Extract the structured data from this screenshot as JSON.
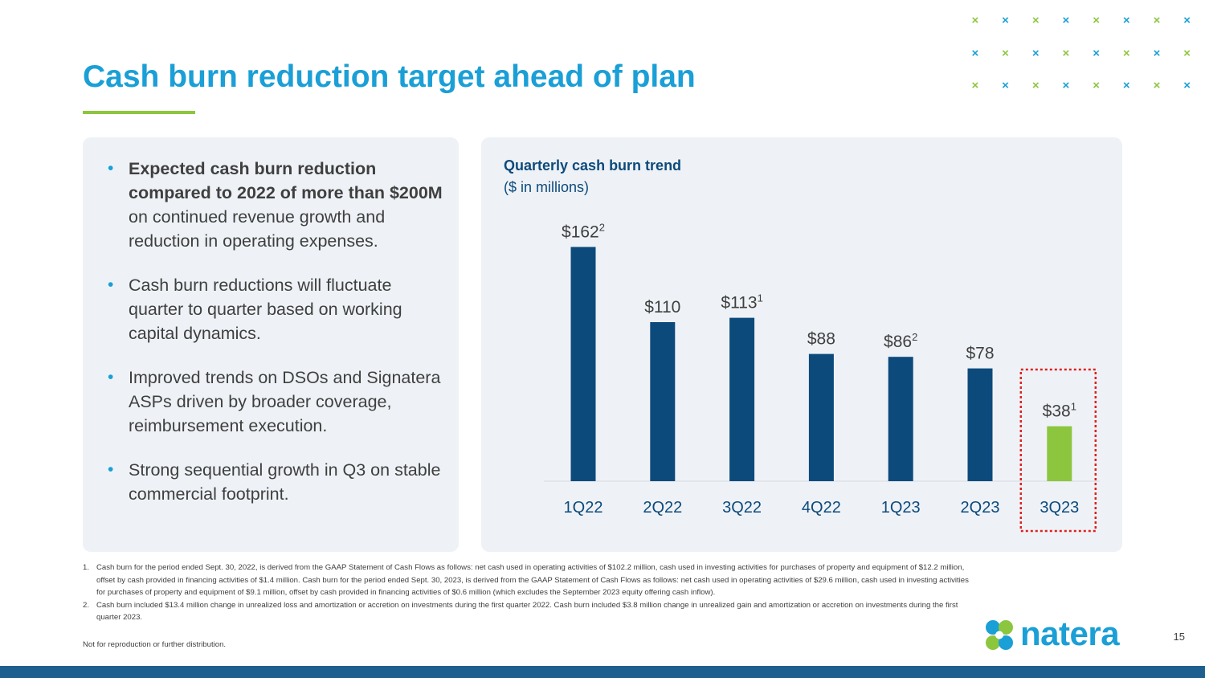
{
  "header": {
    "title": "Cash burn reduction target ahead of plan"
  },
  "decor": {
    "x_glyph": "×",
    "colors": [
      "#8cc63f",
      "#1a9fd6"
    ]
  },
  "bullets": [
    {
      "bold": "Expected cash burn reduction compared to 2022 of more than $200M",
      "text": " on continued revenue growth and reduction in operating expenses."
    },
    {
      "bold": "",
      "text": "Cash burn reductions will fluctuate quarter to quarter based on working capital dynamics."
    },
    {
      "bold": "",
      "text": "Improved trends on DSOs and Signatera ASPs driven by broader coverage, reimbursement execution."
    },
    {
      "bold": "",
      "text": "Strong sequential growth in Q3 on stable commercial footprint."
    }
  ],
  "chart_data": {
    "type": "bar",
    "title": "Quarterly cash burn trend",
    "subtitle": "($ in millions)",
    "xlabel": "",
    "ylabel": "",
    "ylim": [
      0,
      170
    ],
    "grid": false,
    "categories": [
      "1Q22",
      "2Q22",
      "3Q22",
      "4Q22",
      "1Q23",
      "2Q23",
      "3Q23"
    ],
    "values": [
      162,
      110,
      113,
      88,
      86,
      78,
      38
    ],
    "labels": [
      "$162",
      "$110",
      "$113",
      "$88",
      "$86",
      "$78",
      "$38"
    ],
    "footnote_refs": [
      "2",
      "",
      "1",
      "",
      "2",
      "",
      "1"
    ],
    "highlight_index": 6,
    "colors": {
      "bar": "#0d4a7c",
      "highlight": "#8cc63f",
      "highlight_box": "#e02020"
    }
  },
  "footnotes": [
    {
      "num": "1.",
      "text": "Cash burn for the period ended Sept. 30, 2022, is derived from the GAAP Statement of Cash Flows as follows: net cash used in operating activities of $102.2 million,  cash used in investing activities for purchases of property and equipment of $12.2 million, offset by cash provided in financing activities of $1.4 million. Cash burn for the period ended Sept. 30, 2023, is derived from  the GAAP Statement of Cash Flows as follows: net cash used in operating activities of $29.6 million,  cash used in investing activities for purchases of property and equipment of $9.1 million, offset by cash provided in financing activities of $0.6 million (which excludes the September 2023 equity offering cash inflow)."
    },
    {
      "num": "2.",
      "text": "Cash burn included $13.4 million change in unrealized loss and amortization or accretion on investments during the first quarter 2022. Cash burn included $3.8 million change in unrealized gain and amortization or accretion on investments during the first quarter 2023."
    }
  ],
  "disclaimer": "Not for reproduction or further distribution.",
  "logo": {
    "text": "natera"
  },
  "page_number": "15"
}
